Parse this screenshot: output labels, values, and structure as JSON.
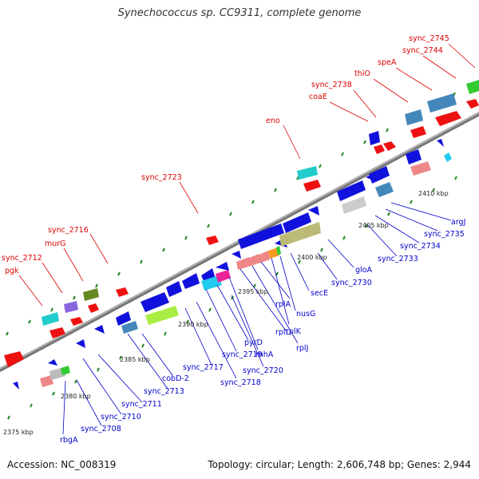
{
  "title": "Synechococcus sp. CC9311, complete genome",
  "accession": "Accession: NC_008319",
  "meta": "Topology: circular; Length: 2,606,748 bp; Genes: 2,944",
  "scale_labels": [
    "2375 kbp",
    "2380 kbp",
    "2385 kbp",
    "2390 kbp",
    "2395 kbp",
    "2400 kbp",
    "2405 kbp",
    "2410 kbp"
  ],
  "labels_top": [
    "sync_2745",
    "sync_2744",
    "speA",
    "thiO",
    "sync_2738",
    "coaE",
    "eno",
    "sync_2723",
    "sync_2716",
    "murG",
    "sync_2712",
    "pgk"
  ],
  "labels_bottom": [
    "argJ",
    "sync_2735",
    "sync_2734",
    "sync_2733",
    "gloA",
    "sync_2730",
    "secE",
    "nusG",
    "rplK",
    "rplA",
    "rplJ",
    "rplL",
    "rnhA",
    "pyrD",
    "sync_2719",
    "sync_2720",
    "sync_2718",
    "sync_2717",
    "cobD-2",
    "sync_2713",
    "sync_2711",
    "sync_2710",
    "sync_2708",
    "rbgA"
  ],
  "colors": {
    "label_top": "#dd0000",
    "label_bottom": "#0000cc",
    "backbone": "#888888",
    "tick": "#228822"
  }
}
